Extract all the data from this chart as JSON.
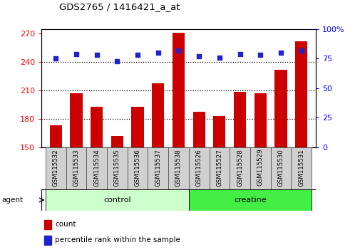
{
  "title": "GDS2765 / 1416421_a_at",
  "categories": [
    "GSM115532",
    "GSM115533",
    "GSM115534",
    "GSM115535",
    "GSM115536",
    "GSM115537",
    "GSM115538",
    "GSM115526",
    "GSM115527",
    "GSM115528",
    "GSM115529",
    "GSM115530",
    "GSM115531"
  ],
  "counts": [
    173,
    207,
    193,
    162,
    193,
    218,
    271,
    188,
    183,
    209,
    207,
    232,
    262
  ],
  "percentiles": [
    75,
    79,
    78,
    73,
    78,
    80,
    82,
    77,
    76,
    79,
    78,
    80,
    82
  ],
  "bar_color": "#cc0000",
  "dot_color": "#2222cc",
  "ylim_left": [
    150,
    275
  ],
  "ylim_right": [
    0,
    100
  ],
  "yticks_left": [
    150,
    180,
    210,
    240,
    270
  ],
  "yticks_right": [
    0,
    25,
    50,
    75,
    100
  ],
  "ytick_labels_left": [
    "150",
    "180",
    "210",
    "240",
    "270"
  ],
  "ytick_labels_right": [
    "0",
    "25",
    "50",
    "75",
    "100%"
  ],
  "groups": [
    {
      "label": "control",
      "indices": [
        0,
        1,
        2,
        3,
        4,
        5,
        6
      ],
      "color": "#ccffcc"
    },
    {
      "label": "creatine",
      "indices": [
        7,
        8,
        9,
        10,
        11,
        12
      ],
      "color": "#44ee44"
    }
  ],
  "agent_label": "agent",
  "legend_items": [
    {
      "label": "count",
      "color": "#cc0000"
    },
    {
      "label": "percentile rank within the sample",
      "color": "#2222cc"
    }
  ],
  "bar_width": 0.6,
  "gridline_values": [
    180,
    210,
    240
  ],
  "dotted_line_value": 240
}
